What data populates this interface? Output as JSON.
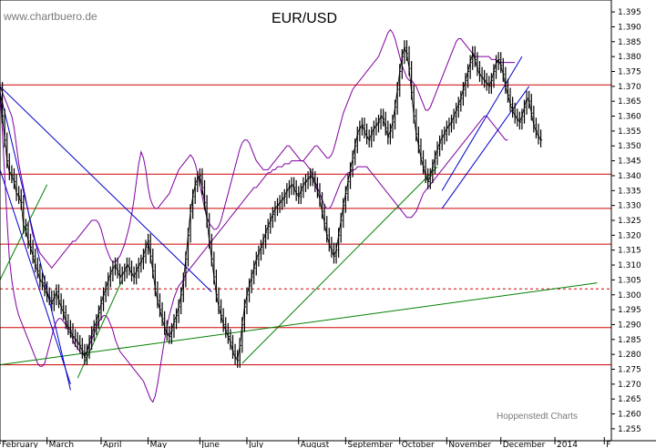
{
  "chart_data": {
    "type": "line",
    "title": "EUR/USD",
    "watermark": "www.chartbuero.de",
    "credit": "Hoppenstedt Charts",
    "ylim": [
      1.251,
      1.399
    ],
    "y_axis_position": "right",
    "y_ticks": [
      "1.255",
      "1.260",
      "1.265",
      "1.270",
      "1.275",
      "1.280",
      "1.285",
      "1.290",
      "1.295",
      "1.300",
      "1.305",
      "1.310",
      "1.315",
      "1.320",
      "1.325",
      "1.330",
      "1.335",
      "1.340",
      "1.345",
      "1.350",
      "1.355",
      "1.360",
      "1.365",
      "1.370",
      "1.375",
      "1.380",
      "1.385",
      "1.390",
      "1.395"
    ],
    "x_ticks": [
      "February",
      "March",
      "April",
      "May",
      "June",
      "July",
      "August",
      "September",
      "October",
      "November",
      "December",
      "2014",
      "F"
    ],
    "x_tick_pos": [
      0,
      20,
      43,
      63,
      85,
      105,
      127,
      147,
      170,
      190,
      213,
      236,
      257
    ],
    "xlim": [
      0,
      260
    ],
    "colors": {
      "price": "#000000",
      "bands": "#8000a0",
      "horizontal_levels": "#d00000",
      "uptrend": "#008000",
      "downtrend": "#0000c8",
      "grid": "#cccccc"
    },
    "price": [
      1.369,
      1.36,
      1.352,
      1.345,
      1.341,
      1.34,
      1.338,
      1.334,
      1.333,
      1.331,
      1.323,
      1.322,
      1.318,
      1.316,
      1.313,
      1.31,
      1.308,
      1.305,
      1.304,
      1.302,
      1.3,
      1.299,
      1.297,
      1.299,
      1.301,
      1.298,
      1.296,
      1.294,
      1.291,
      1.289,
      1.288,
      1.286,
      1.285,
      1.284,
      1.283,
      1.281,
      1.279,
      1.281,
      1.284,
      1.287,
      1.289,
      1.291,
      1.294,
      1.297,
      1.3,
      1.302,
      1.305,
      1.307,
      1.309,
      1.31,
      1.308,
      1.306,
      1.307,
      1.308,
      1.31,
      1.309,
      1.307,
      1.306,
      1.308,
      1.31,
      1.311,
      1.313,
      1.316,
      1.318,
      1.313,
      1.308,
      1.302,
      1.298,
      1.295,
      1.292,
      1.289,
      1.287,
      1.286,
      1.288,
      1.291,
      1.293,
      1.296,
      1.3,
      1.305,
      1.312,
      1.32,
      1.328,
      1.333,
      1.337,
      1.339,
      1.34,
      1.336,
      1.331,
      1.325,
      1.318,
      1.312,
      1.306,
      1.3,
      1.296,
      1.293,
      1.29,
      1.288,
      1.286,
      1.284,
      1.281,
      1.279,
      1.278,
      1.283,
      1.29,
      1.296,
      1.3,
      1.303,
      1.306,
      1.309,
      1.312,
      1.314,
      1.316,
      1.318,
      1.321,
      1.323,
      1.325,
      1.327,
      1.329,
      1.33,
      1.331,
      1.332,
      1.333,
      1.335,
      1.336,
      1.337,
      1.336,
      1.334,
      1.333,
      1.335,
      1.337,
      1.338,
      1.339,
      1.34,
      1.339,
      1.337,
      1.335,
      1.332,
      1.328,
      1.324,
      1.32,
      1.317,
      1.315,
      1.313,
      1.315,
      1.32,
      1.325,
      1.33,
      1.334,
      1.338,
      1.342,
      1.346,
      1.35,
      1.354,
      1.356,
      1.357,
      1.355,
      1.353,
      1.352,
      1.354,
      1.356,
      1.357,
      1.358,
      1.36,
      1.359,
      1.356,
      1.353,
      1.355,
      1.358,
      1.363,
      1.369,
      1.375,
      1.38,
      1.383,
      1.381,
      1.376,
      1.368,
      1.36,
      1.354,
      1.35,
      1.346,
      1.343,
      1.34,
      1.338,
      1.34,
      1.343,
      1.346,
      1.349,
      1.351,
      1.353,
      1.354,
      1.356,
      1.357,
      1.358,
      1.36,
      1.362,
      1.364,
      1.366,
      1.369,
      1.372,
      1.375,
      1.378,
      1.381,
      1.379,
      1.376,
      1.374,
      1.373,
      1.372,
      1.371,
      1.37,
      1.372,
      1.375,
      1.378,
      1.379,
      1.377,
      1.374,
      1.37,
      1.367,
      1.364,
      1.362,
      1.36,
      1.359,
      1.358,
      1.36,
      1.363,
      1.366,
      1.365,
      1.361,
      1.357,
      1.355,
      1.353,
      1.352
    ],
    "upper_band": [
      1.37,
      1.368,
      1.366,
      1.364,
      1.362,
      1.36,
      1.356,
      1.35,
      1.344,
      1.34,
      1.336,
      1.332,
      1.328,
      1.324,
      1.32,
      1.318,
      1.316,
      1.314,
      1.313,
      1.312,
      1.311,
      1.31,
      1.309,
      1.31,
      1.311,
      1.312,
      1.313,
      1.314,
      1.315,
      1.316,
      1.317,
      1.318,
      1.318,
      1.319,
      1.32,
      1.321,
      1.322,
      1.323,
      1.324,
      1.325,
      1.325,
      1.325,
      1.324,
      1.322,
      1.319,
      1.316,
      1.314,
      1.312,
      1.311,
      1.311,
      1.312,
      1.313,
      1.315,
      1.317,
      1.32,
      1.323,
      1.327,
      1.332,
      1.338,
      1.344,
      1.348,
      1.346,
      1.342,
      1.336,
      1.332,
      1.33,
      1.329,
      1.329,
      1.33,
      1.331,
      1.332,
      1.333,
      1.334,
      1.336,
      1.338,
      1.34,
      1.342,
      1.343,
      1.344,
      1.345,
      1.346,
      1.347,
      1.346,
      1.344,
      1.341,
      1.337,
      1.333,
      1.329,
      1.326,
      1.324,
      1.323,
      1.322,
      1.322,
      1.323,
      1.325,
      1.328,
      1.331,
      1.334,
      1.337,
      1.34,
      1.343,
      1.346,
      1.349,
      1.351,
      1.352,
      1.352,
      1.351,
      1.349,
      1.347,
      1.345,
      1.344,
      1.343,
      1.342,
      1.342,
      1.342,
      1.343,
      1.344,
      1.345,
      1.346,
      1.347,
      1.348,
      1.349,
      1.35,
      1.35,
      1.349,
      1.348,
      1.347,
      1.346,
      1.345,
      1.345,
      1.346,
      1.347,
      1.348,
      1.349,
      1.35,
      1.35,
      1.349,
      1.348,
      1.347,
      1.346,
      1.346,
      1.347,
      1.349,
      1.352,
      1.355,
      1.358,
      1.361,
      1.363,
      1.365,
      1.367,
      1.369,
      1.37,
      1.371,
      1.372,
      1.373,
      1.374,
      1.375,
      1.376,
      1.377,
      1.378,
      1.379,
      1.38,
      1.382,
      1.384,
      1.386,
      1.388,
      1.389,
      1.388,
      1.386,
      1.383,
      1.38,
      1.377,
      1.375,
      1.373,
      1.372,
      1.372,
      1.371,
      1.37,
      1.368,
      1.366,
      1.364,
      1.362,
      1.362,
      1.363,
      1.365,
      1.367,
      1.369,
      1.371,
      1.373,
      1.375,
      1.377,
      1.379,
      1.381,
      1.383,
      1.385,
      1.386,
      1.386,
      1.385,
      1.384,
      1.383,
      1.382,
      1.381,
      1.38,
      1.38,
      1.38,
      1.38,
      1.38,
      1.38,
      1.38,
      1.379,
      1.379,
      1.379,
      1.378,
      1.378,
      1.378,
      1.378,
      1.378,
      1.378,
      1.378,
      1.378
    ],
    "lower_band": [
      1.369,
      1.355,
      1.34,
      1.325,
      1.312,
      1.305,
      1.3,
      1.296,
      1.293,
      1.291,
      1.289,
      1.287,
      1.285,
      1.283,
      1.281,
      1.279,
      1.277,
      1.276,
      1.276,
      1.277,
      1.28,
      1.283,
      1.286,
      1.289,
      1.291,
      1.292,
      1.292,
      1.291,
      1.29,
      1.288,
      1.287,
      1.285,
      1.283,
      1.282,
      1.281,
      1.28,
      1.28,
      1.281,
      1.283,
      1.285,
      1.287,
      1.289,
      1.291,
      1.292,
      1.293,
      1.293,
      1.292,
      1.29,
      1.288,
      1.285,
      1.283,
      1.281,
      1.28,
      1.279,
      1.278,
      1.277,
      1.276,
      1.275,
      1.274,
      1.273,
      1.272,
      1.271,
      1.269,
      1.267,
      1.265,
      1.264,
      1.266,
      1.27,
      1.275,
      1.28,
      1.285,
      1.289,
      1.293,
      1.296,
      1.299,
      1.301,
      1.303,
      1.304,
      1.305,
      1.307,
      1.308,
      1.309,
      1.31,
      1.311,
      1.312,
      1.313,
      1.314,
      1.315,
      1.316,
      1.317,
      1.318,
      1.319,
      1.32,
      1.321,
      1.322,
      1.323,
      1.324,
      1.325,
      1.326,
      1.327,
      1.328,
      1.329,
      1.33,
      1.331,
      1.332,
      1.333,
      1.334,
      1.335,
      1.336,
      1.336,
      1.337,
      1.338,
      1.339,
      1.34,
      1.341,
      1.341,
      1.342,
      1.342,
      1.343,
      1.343,
      1.343,
      1.344,
      1.344,
      1.344,
      1.345,
      1.345,
      1.345,
      1.345,
      1.345,
      1.345,
      1.344,
      1.343,
      1.342,
      1.34,
      1.338,
      1.336,
      1.334,
      1.332,
      1.33,
      1.329,
      1.329,
      1.33,
      1.332,
      1.334,
      1.336,
      1.338,
      1.339,
      1.34,
      1.341,
      1.341,
      1.342,
      1.342,
      1.343,
      1.343,
      1.343,
      1.343,
      1.343,
      1.342,
      1.341,
      1.34,
      1.339,
      1.338,
      1.337,
      1.336,
      1.335,
      1.334,
      1.333,
      1.332,
      1.331,
      1.33,
      1.329,
      1.328,
      1.327,
      1.326,
      1.326,
      1.326,
      1.327,
      1.328,
      1.33,
      1.332,
      1.334,
      1.335,
      1.336,
      1.337,
      1.338,
      1.339,
      1.34,
      1.341,
      1.342,
      1.343,
      1.344,
      1.345,
      1.346,
      1.347,
      1.348,
      1.349,
      1.35,
      1.351,
      1.352,
      1.353,
      1.354,
      1.355,
      1.356,
      1.357,
      1.358,
      1.359,
      1.36,
      1.36,
      1.359,
      1.358,
      1.357,
      1.356,
      1.355,
      1.354,
      1.353,
      1.352,
      1.352
    ],
    "horizontal_levels": [
      1.2765,
      1.289,
      1.317,
      1.329,
      1.3405,
      1.3705
    ],
    "dashed_level": 1.302,
    "uptrend_lines": [
      {
        "x1": 0,
        "y1": 1.2765,
        "x2": 254,
        "y2": 1.304
      },
      {
        "x1": 33,
        "y1": 1.272,
        "x2": 52,
        "y2": 1.305
      },
      {
        "x1": 103,
        "y1": 1.277,
        "x2": 186,
        "y2": 1.343
      },
      {
        "x1": 0,
        "y1": 1.305,
        "x2": 20,
        "y2": 1.337
      }
    ],
    "downtrend_lines": [
      {
        "x1": 0,
        "y1": 1.37,
        "x2": 90,
        "y2": 1.301
      },
      {
        "x1": 0,
        "y1": 1.368,
        "x2": 30,
        "y2": 1.268
      },
      {
        "x1": 0,
        "y1": 1.342,
        "x2": 30,
        "y2": 1.27
      }
    ],
    "channel_lines": [
      {
        "x1": 188,
        "y1": 1.329,
        "x2": 225,
        "y2": 1.37
      },
      {
        "x1": 188,
        "y1": 1.335,
        "x2": 222,
        "y2": 1.38
      }
    ]
  }
}
